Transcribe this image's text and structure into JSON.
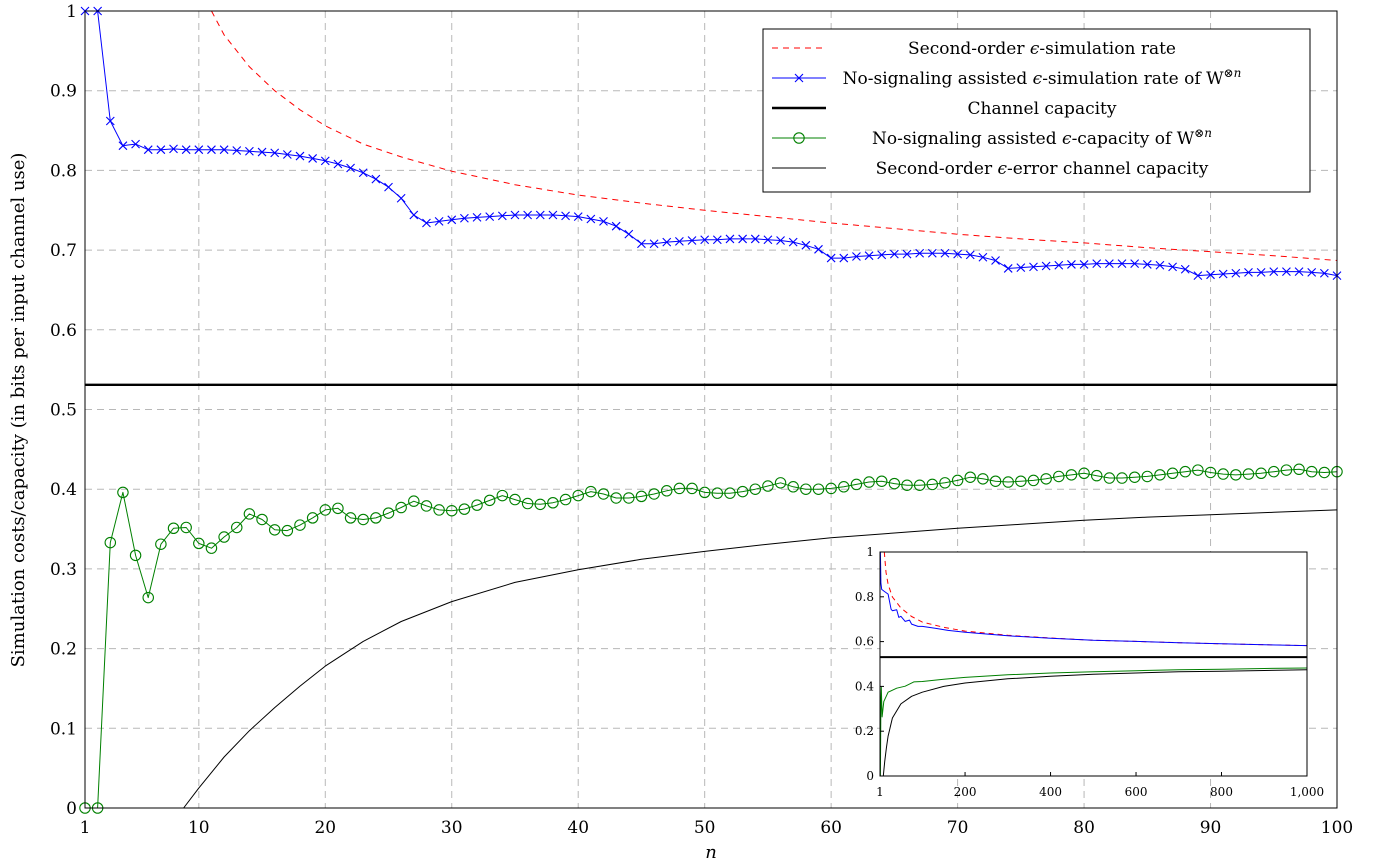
{
  "chart_data": [
    {
      "type": "line",
      "title": "",
      "xlabel": "n",
      "ylabel": "Simulation costs/capacity (in bits per input channel use)",
      "xlim": [
        1,
        100
      ],
      "ylim": [
        0,
        1
      ],
      "xticks": [
        1,
        10,
        20,
        30,
        40,
        50,
        60,
        70,
        80,
        90,
        100
      ],
      "yticks": [
        0,
        0.1,
        0.2,
        0.3,
        0.4,
        0.5,
        0.6,
        0.7,
        0.8,
        0.9,
        1
      ],
      "xtick_labels": [
        "1",
        "10",
        "20",
        "30",
        "40",
        "50",
        "60",
        "70",
        "80",
        "90",
        "100"
      ],
      "ytick_labels": [
        "0",
        "0.1",
        "0.2",
        "0.3",
        "0.4",
        "0.5",
        "0.6",
        "0.7",
        "0.8",
        "0.9",
        "1"
      ],
      "grid": true,
      "legend_position": "top-right",
      "legend": [
        {
          "pre": "Second-order ",
          "eps": "ϵ",
          "post": "-simulation rate",
          "sup": "",
          "color": "#ff0000",
          "dash": "dashed",
          "marker": "none",
          "width": 1
        },
        {
          "pre": "No-signaling assisted ",
          "eps": "ϵ",
          "post": "-simulation rate of W",
          "sup": "⊗n",
          "color": "#0000ff",
          "dash": "solid",
          "marker": "x",
          "width": 1
        },
        {
          "pre": "Channel capacity",
          "eps": "",
          "post": "",
          "sup": "",
          "color": "#000000",
          "dash": "solid",
          "marker": "none",
          "width": 2.4
        },
        {
          "pre": "No-signaling assisted ",
          "eps": "ϵ",
          "post": "-capacity of W",
          "sup": "⊗n",
          "color": "#008000",
          "dash": "solid",
          "marker": "o",
          "width": 1
        },
        {
          "pre": "Second-order ",
          "eps": "ϵ",
          "post": "-error channel capacity",
          "sup": "",
          "color": "#000000",
          "dash": "solid",
          "marker": "none",
          "width": 1
        }
      ],
      "series": [
        {
          "name": "Second-order ϵ-simulation rate",
          "color": "#ff0000",
          "x": [
            11,
            12,
            14,
            16,
            18,
            20,
            23,
            26,
            30,
            35,
            40,
            45,
            50,
            55,
            60,
            65,
            70,
            75,
            80,
            85,
            90,
            95,
            100
          ],
          "y": [
            1.0,
            0.97,
            0.93,
            0.9,
            0.876,
            0.856,
            0.833,
            0.817,
            0.799,
            0.782,
            0.769,
            0.759,
            0.75,
            0.742,
            0.734,
            0.727,
            0.72,
            0.714,
            0.709,
            0.703,
            0.698,
            0.693,
            0.687
          ]
        },
        {
          "name": "No-signaling assisted ϵ-simulation rate of W⊗n",
          "color": "#0000ff",
          "x": [
            1,
            2,
            3,
            4,
            5,
            6,
            7,
            8,
            9,
            10,
            11,
            12,
            13,
            14,
            15,
            16,
            17,
            18,
            19,
            20,
            21,
            22,
            23,
            24,
            25,
            26,
            27,
            28,
            29,
            30,
            31,
            32,
            33,
            34,
            35,
            36,
            37,
            38,
            39,
            40,
            41,
            42,
            43,
            44,
            45,
            46,
            47,
            48,
            49,
            50,
            51,
            52,
            53,
            54,
            55,
            56,
            57,
            58,
            59,
            60,
            61,
            62,
            63,
            64,
            65,
            66,
            67,
            68,
            69,
            70,
            71,
            72,
            73,
            74,
            75,
            76,
            77,
            78,
            79,
            80,
            81,
            82,
            83,
            84,
            85,
            86,
            87,
            88,
            89,
            90,
            91,
            92,
            93,
            94,
            95,
            96,
            97,
            98,
            99,
            100
          ],
          "y": [
            1.0,
            1.0,
            0.862,
            0.831,
            0.833,
            0.826,
            0.826,
            0.827,
            0.826,
            0.826,
            0.826,
            0.826,
            0.825,
            0.824,
            0.823,
            0.822,
            0.82,
            0.818,
            0.815,
            0.812,
            0.808,
            0.803,
            0.797,
            0.789,
            0.779,
            0.765,
            0.744,
            0.734,
            0.736,
            0.738,
            0.74,
            0.741,
            0.742,
            0.743,
            0.744,
            0.744,
            0.744,
            0.744,
            0.743,
            0.742,
            0.739,
            0.736,
            0.73,
            0.72,
            0.708,
            0.708,
            0.71,
            0.711,
            0.712,
            0.713,
            0.713,
            0.714,
            0.714,
            0.714,
            0.713,
            0.712,
            0.71,
            0.706,
            0.701,
            0.69,
            0.69,
            0.692,
            0.693,
            0.694,
            0.695,
            0.695,
            0.696,
            0.696,
            0.696,
            0.695,
            0.694,
            0.691,
            0.687,
            0.677,
            0.678,
            0.679,
            0.68,
            0.681,
            0.682,
            0.682,
            0.683,
            0.683,
            0.683,
            0.683,
            0.682,
            0.681,
            0.679,
            0.676,
            0.668,
            0.669,
            0.67,
            0.671,
            0.672,
            0.672,
            0.673,
            0.673,
            0.673,
            0.672,
            0.671,
            0.668
          ]
        },
        {
          "name": "Channel capacity",
          "color": "#000000",
          "x": [
            1,
            100
          ],
          "y": [
            0.531,
            0.531
          ]
        },
        {
          "name": "No-signaling assisted ϵ-capacity of W⊗n",
          "color": "#008000",
          "x": [
            1,
            2,
            3,
            4,
            5,
            6,
            7,
            8,
            9,
            10,
            11,
            12,
            13,
            14,
            15,
            16,
            17,
            18,
            19,
            20,
            21,
            22,
            23,
            24,
            25,
            26,
            27,
            28,
            29,
            30,
            31,
            32,
            33,
            34,
            35,
            36,
            37,
            38,
            39,
            40,
            41,
            42,
            43,
            44,
            45,
            46,
            47,
            48,
            49,
            50,
            51,
            52,
            53,
            54,
            55,
            56,
            57,
            58,
            59,
            60,
            61,
            62,
            63,
            64,
            65,
            66,
            67,
            68,
            69,
            70,
            71,
            72,
            73,
            74,
            75,
            76,
            77,
            78,
            79,
            80,
            81,
            82,
            83,
            84,
            85,
            86,
            87,
            88,
            89,
            90,
            91,
            92,
            93,
            94,
            95,
            96,
            97,
            98,
            99,
            100
          ],
          "y": [
            0.0,
            0.0,
            0.333,
            0.396,
            0.317,
            0.264,
            0.331,
            0.351,
            0.352,
            0.332,
            0.326,
            0.34,
            0.352,
            0.369,
            0.362,
            0.349,
            0.348,
            0.355,
            0.364,
            0.374,
            0.376,
            0.364,
            0.362,
            0.364,
            0.37,
            0.377,
            0.385,
            0.379,
            0.374,
            0.373,
            0.375,
            0.38,
            0.386,
            0.392,
            0.387,
            0.382,
            0.381,
            0.383,
            0.387,
            0.392,
            0.397,
            0.394,
            0.389,
            0.389,
            0.391,
            0.394,
            0.398,
            0.401,
            0.401,
            0.396,
            0.395,
            0.395,
            0.397,
            0.4,
            0.404,
            0.408,
            0.403,
            0.4,
            0.4,
            0.401,
            0.403,
            0.406,
            0.409,
            0.41,
            0.407,
            0.405,
            0.405,
            0.406,
            0.408,
            0.411,
            0.415,
            0.413,
            0.41,
            0.409,
            0.41,
            0.411,
            0.413,
            0.416,
            0.418,
            0.42,
            0.417,
            0.414,
            0.414,
            0.415,
            0.416,
            0.418,
            0.42,
            0.422,
            0.424,
            0.421,
            0.419,
            0.418,
            0.419,
            0.42,
            0.422,
            0.424,
            0.425,
            0.422,
            0.421,
            0.422
          ]
        },
        {
          "name": "Second-order ϵ-error channel capacity",
          "color": "#000000",
          "x": [
            8.8,
            10,
            12,
            14,
            16,
            18,
            20,
            23,
            26,
            30,
            35,
            40,
            45,
            50,
            55,
            60,
            65,
            70,
            75,
            80,
            85,
            90,
            95,
            100
          ],
          "y": [
            0.0,
            0.025,
            0.064,
            0.097,
            0.126,
            0.153,
            0.178,
            0.209,
            0.234,
            0.259,
            0.283,
            0.299,
            0.312,
            0.322,
            0.331,
            0.339,
            0.345,
            0.351,
            0.356,
            0.361,
            0.365,
            0.368,
            0.371,
            0.374
          ]
        }
      ]
    },
    {
      "type": "line",
      "title": "",
      "xlabel": "",
      "ylabel": "",
      "xlim": [
        1,
        1000
      ],
      "ylim": [
        0,
        1
      ],
      "xticks": [
        1,
        200,
        400,
        600,
        800,
        1000
      ],
      "yticks": [
        0,
        0.2,
        0.4,
        0.6,
        0.8,
        1
      ],
      "xtick_labels": [
        "1",
        "200",
        "400",
        "600",
        "800",
        "1,000"
      ],
      "ytick_labels": [
        "0",
        "0.2",
        "0.4",
        "0.6",
        "0.8",
        "1"
      ],
      "grid": false,
      "series": [
        {
          "name": "Second-order ϵ-simulation rate",
          "color": "#ff0000",
          "x": [
            11,
            15,
            20,
            30,
            50,
            75,
            100,
            150,
            200,
            300,
            400,
            500,
            600,
            700,
            800,
            900,
            1000
          ],
          "y": [
            1.0,
            0.91,
            0.856,
            0.799,
            0.75,
            0.712,
            0.687,
            0.664,
            0.647,
            0.628,
            0.616,
            0.606,
            0.601,
            0.595,
            0.59,
            0.586,
            0.582
          ]
        },
        {
          "name": "No-signaling assisted ϵ-simulation rate of W⊗n",
          "color": "#0000ff",
          "x": [
            1,
            2,
            3,
            5,
            10,
            20,
            27,
            30,
            40,
            45,
            50,
            60,
            70,
            75,
            90,
            100,
            130,
            160,
            200,
            300,
            400,
            500,
            600,
            700,
            800,
            900,
            1000
          ],
          "y": [
            1.0,
            1.0,
            0.862,
            0.833,
            0.826,
            0.812,
            0.744,
            0.738,
            0.742,
            0.708,
            0.713,
            0.69,
            0.696,
            0.678,
            0.668,
            0.668,
            0.66,
            0.65,
            0.642,
            0.626,
            0.615,
            0.606,
            0.601,
            0.595,
            0.59,
            0.586,
            0.582
          ]
        },
        {
          "name": "Channel capacity",
          "color": "#000000",
          "x": [
            1,
            1000
          ],
          "y": [
            0.531,
            0.531
          ]
        },
        {
          "name": "No-signaling assisted ϵ-capacity of W⊗n",
          "color": "#008000",
          "x": [
            1,
            2,
            3,
            4,
            6,
            10,
            20,
            40,
            60,
            80,
            100,
            150,
            200,
            300,
            400,
            500,
            600,
            700,
            800,
            900,
            1000
          ],
          "y": [
            0.0,
            0.0,
            0.333,
            0.396,
            0.264,
            0.332,
            0.374,
            0.392,
            0.401,
            0.42,
            0.422,
            0.432,
            0.44,
            0.452,
            0.46,
            0.465,
            0.47,
            0.474,
            0.477,
            0.48,
            0.482
          ]
        },
        {
          "name": "Second-order ϵ-error channel capacity",
          "color": "#000000",
          "x": [
            8.8,
            12,
            16,
            20,
            30,
            50,
            75,
            100,
            150,
            200,
            300,
            400,
            500,
            600,
            700,
            800,
            900,
            1000
          ],
          "y": [
            0.0,
            0.064,
            0.126,
            0.178,
            0.259,
            0.322,
            0.356,
            0.374,
            0.4,
            0.415,
            0.434,
            0.445,
            0.454,
            0.46,
            0.465,
            0.468,
            0.471,
            0.474
          ]
        }
      ]
    }
  ]
}
